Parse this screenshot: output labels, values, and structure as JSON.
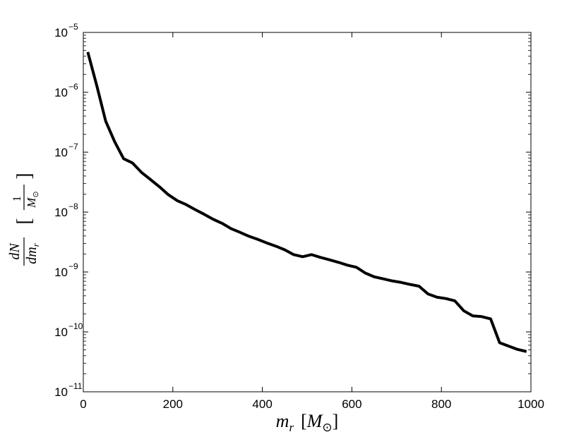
{
  "chart_data": {
    "type": "line",
    "xlabel": {
      "main": "m",
      "sub": "r",
      "unit_open": "[",
      "unit_main": "M",
      "unit_sub": "⊙",
      "unit_close": "]"
    },
    "ylabel": {
      "num": "dN",
      "den_d": "dm",
      "den_sub": "r",
      "open": "[",
      "frac_num": "1",
      "frac_den": "M",
      "frac_den_sub": "⊙",
      "close": "]"
    },
    "xlim": [
      0,
      1000
    ],
    "ylim": [
      1e-11,
      1e-05
    ],
    "yscale": "log",
    "x_ticks": [
      "0",
      "200",
      "400",
      "600",
      "800",
      "1000"
    ],
    "y_ticks": [
      {
        "base": "10",
        "exp": "−11",
        "value": 1e-11
      },
      {
        "base": "10",
        "exp": "−10",
        "value": 1e-10
      },
      {
        "base": "10",
        "exp": "−9",
        "value": 1e-09
      },
      {
        "base": "10",
        "exp": "−8",
        "value": 1e-08
      },
      {
        "base": "10",
        "exp": "−7",
        "value": 1e-07
      },
      {
        "base": "10",
        "exp": "−6",
        "value": 1e-06
      },
      {
        "base": "10",
        "exp": "−5",
        "value": 1e-05
      }
    ],
    "grid": false,
    "series": [
      {
        "color": "#000000",
        "x": [
          10,
          30,
          50,
          70,
          90,
          110,
          130,
          150,
          170,
          190,
          210,
          230,
          250,
          270,
          290,
          310,
          330,
          350,
          370,
          390,
          410,
          430,
          450,
          470,
          490,
          510,
          530,
          550,
          570,
          590,
          610,
          630,
          650,
          670,
          690,
          710,
          730,
          750,
          770,
          790,
          810,
          830,
          850,
          870,
          890,
          910,
          930,
          950,
          970,
          990
        ],
        "y": [
          4.7e-06,
          1.3e-06,
          3.3e-07,
          1.5e-07,
          7.8e-08,
          6.6e-08,
          4.6e-08,
          3.5e-08,
          2.65e-08,
          1.95e-08,
          1.55e-08,
          1.33e-08,
          1.1e-08,
          9.2e-09,
          7.6e-09,
          6.5e-09,
          5.3e-09,
          4.6e-09,
          3.95e-09,
          3.5e-09,
          3.05e-09,
          2.7e-09,
          2.35e-09,
          1.95e-09,
          1.8e-09,
          1.95e-09,
          1.75e-09,
          1.6e-09,
          1.45e-09,
          1.3e-09,
          1.2e-09,
          9.6e-10,
          8.3e-10,
          7.7e-10,
          7.1e-10,
          6.7e-10,
          6.2e-10,
          5.8e-10,
          4.3e-10,
          3.8e-10,
          3.6e-10,
          3.3e-10,
          2.25e-10,
          1.85e-10,
          1.8e-10,
          1.65e-10,
          6.6e-11,
          5.8e-11,
          5.1e-11,
          4.7e-11
        ]
      }
    ]
  }
}
